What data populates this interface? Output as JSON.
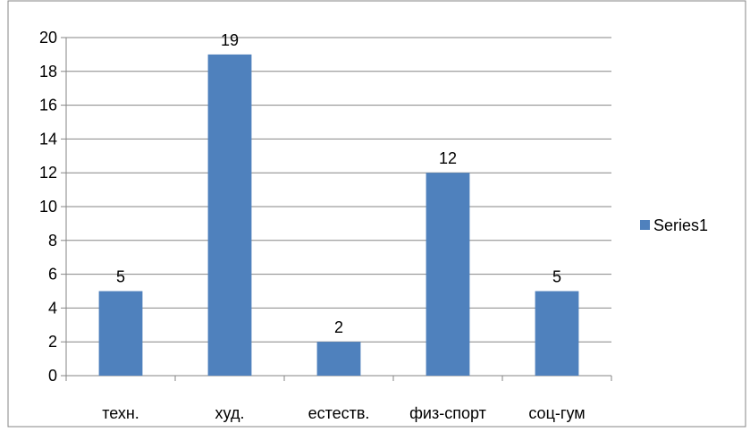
{
  "chart_data": {
    "type": "bar",
    "categories": [
      "техн.",
      "худ.",
      "естеств.",
      "физ-спорт",
      "соц-гум"
    ],
    "series": [
      {
        "name": "Series1",
        "values": [
          5,
          19,
          2,
          12,
          5
        ],
        "color": "#4f81bd"
      }
    ],
    "data_labels": [
      "5",
      "19",
      "2",
      "12",
      "5"
    ],
    "ylim": [
      0,
      20
    ],
    "yticks": [
      0,
      2,
      4,
      6,
      8,
      10,
      12,
      14,
      16,
      18,
      20
    ],
    "ytick_labels": [
      "0",
      "2",
      "4",
      "6",
      "8",
      "10",
      "12",
      "14",
      "16",
      "18",
      "20"
    ],
    "grid": true,
    "legend_position": "right",
    "gridline_color": "#868686",
    "axis_color": "#868686",
    "border_color": "#868686"
  }
}
